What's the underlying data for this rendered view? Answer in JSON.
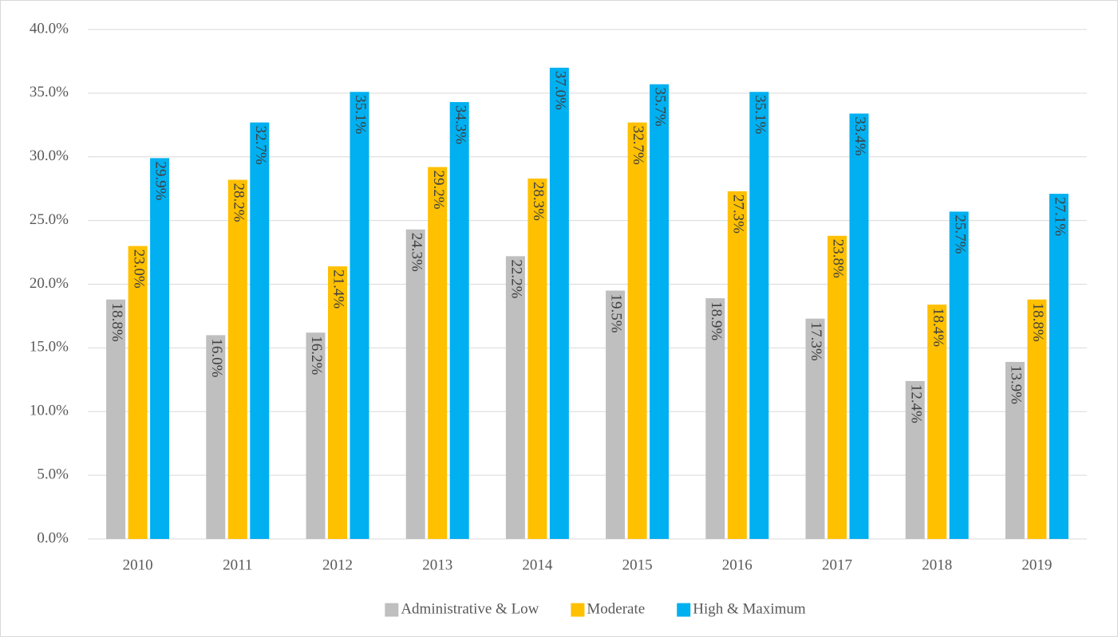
{
  "chart_data": {
    "type": "bar",
    "categories": [
      "2010",
      "2011",
      "2012",
      "2013",
      "2014",
      "2015",
      "2016",
      "2017",
      "2018",
      "2019"
    ],
    "series": [
      {
        "name": "Administrative & Low",
        "color": "#bfbfbf",
        "values": [
          18.8,
          16.0,
          16.2,
          24.3,
          22.2,
          19.5,
          18.9,
          17.3,
          12.4,
          13.9
        ],
        "value_labels": [
          "18.8%",
          "16.0%",
          "16.2%",
          "24.3%",
          "22.2%",
          "19.5%",
          "18.9%",
          "17.3%",
          "12.4%",
          "13.9%"
        ]
      },
      {
        "name": "Moderate",
        "color": "#ffc000",
        "values": [
          23.0,
          28.2,
          21.4,
          29.2,
          28.3,
          32.7,
          27.3,
          23.8,
          18.4,
          18.8
        ],
        "value_labels": [
          "23.0%",
          "28.2%",
          "21.4%",
          "29.2%",
          "28.3%",
          "32.7%",
          "27.3%",
          "23.8%",
          "18.4%",
          "18.8%"
        ]
      },
      {
        "name": "High & Maximum",
        "color": "#00b0f0",
        "values": [
          29.9,
          32.7,
          35.1,
          34.3,
          37.0,
          35.7,
          35.1,
          33.4,
          25.7,
          27.1
        ],
        "value_labels": [
          "29.9%",
          "32.7%",
          "35.1%",
          "34.3%",
          "37.0%",
          "35.7%",
          "35.1%",
          "33.4%",
          "25.7%",
          "27.1%"
        ]
      }
    ],
    "ylim": [
      0,
      40
    ],
    "yticks": [
      {
        "value": 0,
        "label": "0.0%"
      },
      {
        "value": 5,
        "label": "5.0%"
      },
      {
        "value": 10,
        "label": "10.0%"
      },
      {
        "value": 15,
        "label": "15.0%"
      },
      {
        "value": 20,
        "label": "20.0%"
      },
      {
        "value": 25,
        "label": "25.0%"
      },
      {
        "value": 30,
        "label": "30.0%"
      },
      {
        "value": 35,
        "label": "35.0%"
      },
      {
        "value": 40,
        "label": "40.0%"
      }
    ],
    "grid": true,
    "legend": "bottom"
  }
}
